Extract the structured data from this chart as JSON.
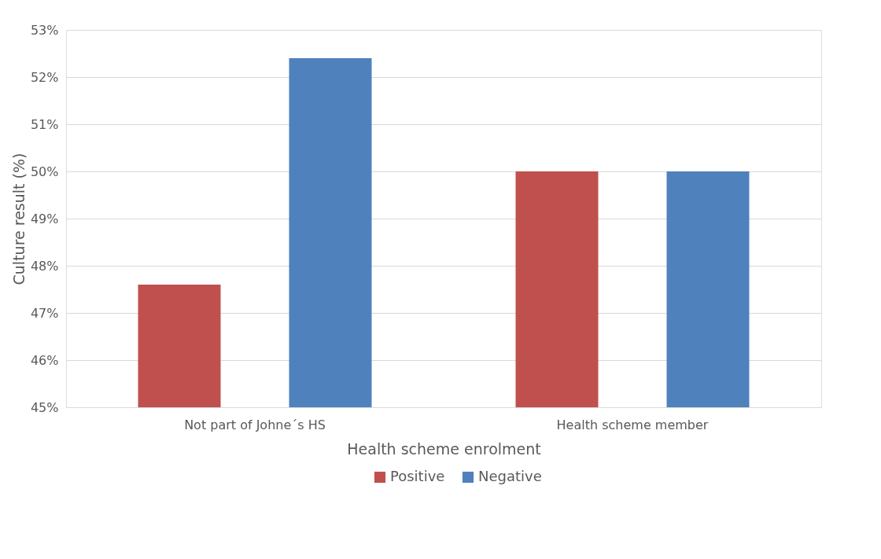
{
  "chart_data": {
    "type": "bar",
    "xlabel": "Health scheme enrolment",
    "ylabel": "Culture result (%)",
    "categories": [
      "Not part of Johne´s HS",
      "Health scheme member"
    ],
    "series": [
      {
        "name": "Positive",
        "color": "#c0504d",
        "values": [
          47.6,
          50.0
        ]
      },
      {
        "name": "Negative",
        "color": "#4f81bd",
        "values": [
          52.4,
          50.0
        ]
      }
    ],
    "ylim": [
      45,
      53
    ],
    "yticks": [
      {
        "value": 45,
        "label": "45%"
      },
      {
        "value": 46,
        "label": "46%"
      },
      {
        "value": 47,
        "label": "47%"
      },
      {
        "value": 48,
        "label": "48%"
      },
      {
        "value": 49,
        "label": "49%"
      },
      {
        "value": 50,
        "label": "50%"
      },
      {
        "value": 51,
        "label": "51%"
      },
      {
        "value": 52,
        "label": "52%"
      },
      {
        "value": 53,
        "label": "53%"
      }
    ],
    "grid": "y",
    "legend": "bottom"
  }
}
